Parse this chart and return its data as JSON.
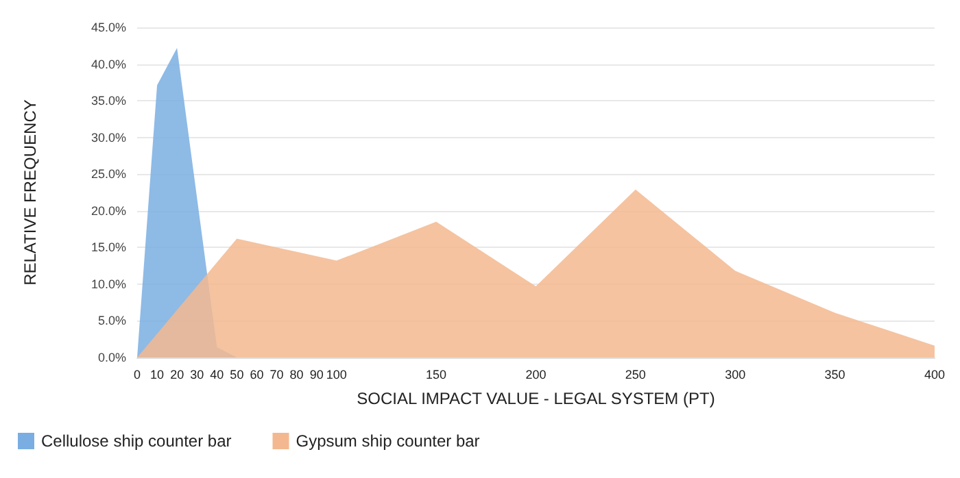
{
  "chart_data": {
    "type": "area",
    "xlabel": "SOCIAL IMPACT VALUE - LEGAL SYSTEM (PT)",
    "ylabel": "RELATIVE FREQUENCY",
    "xlim": [
      0,
      400
    ],
    "xticks": [
      0,
      10,
      20,
      30,
      40,
      50,
      60,
      70,
      80,
      90,
      100,
      150,
      200,
      250,
      300,
      350,
      400
    ],
    "ylim": [
      0,
      45
    ],
    "yticks": [
      {
        "value": 0,
        "label": "0.0%"
      },
      {
        "value": 5,
        "label": "5.0%"
      },
      {
        "value": 10,
        "label": "10.0%"
      },
      {
        "value": 15,
        "label": "15.0%"
      },
      {
        "value": 20,
        "label": "20.0%"
      },
      {
        "value": 25,
        "label": "25.0%"
      },
      {
        "value": 30,
        "label": "30.0%"
      },
      {
        "value": 35,
        "label": "35.0%"
      },
      {
        "value": 40,
        "label": "40.0%"
      },
      {
        "value": 45,
        "label": "45.0%"
      }
    ],
    "grid": "y",
    "legend": "bottom left",
    "series": [
      {
        "name": "Cellulose ship counter bar",
        "color": "#7aaee2",
        "x": [
          0,
          10,
          20,
          40,
          50
        ],
        "values": [
          0,
          37.1,
          42.2,
          1.4,
          0
        ]
      },
      {
        "name": "Gypsum ship counter bar",
        "color": "#f3b88f",
        "x": [
          0,
          50,
          100,
          150,
          200,
          250,
          300,
          350,
          400
        ],
        "values": [
          0,
          16.2,
          13.2,
          18.5,
          9.7,
          22.9,
          11.8,
          6.1,
          1.6
        ]
      }
    ]
  }
}
